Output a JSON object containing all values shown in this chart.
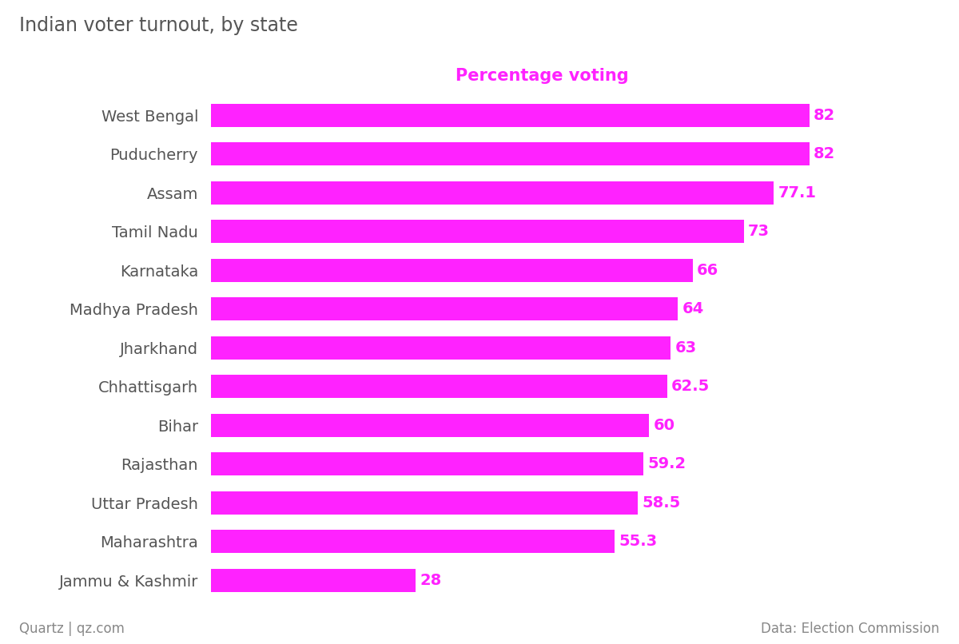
{
  "title": "Indian voter turnout, by state",
  "subtitle": "Percentage voting",
  "subtitle_color": "#ff22ff",
  "title_color": "#555555",
  "bar_color": "#ff22ff",
  "value_color": "#ff22ff",
  "label_color": "#555555",
  "footer_left": "Quartz | qz.com",
  "footer_right": "Data: Election Commission",
  "footer_color": "#888888",
  "background_color": "#ffffff",
  "states": [
    "West Bengal",
    "Puducherry",
    "Assam",
    "Tamil Nadu",
    "Karnataka",
    "Madhya Pradesh",
    "Jharkhand",
    "Chhattisgarh",
    "Bihar",
    "Rajasthan",
    "Uttar Pradesh",
    "Maharashtra",
    "Jammu & Kashmir"
  ],
  "values": [
    82,
    82,
    77.1,
    73,
    66,
    64,
    63,
    62.5,
    60,
    59.2,
    58.5,
    55.3,
    28
  ],
  "value_labels": [
    "82",
    "82",
    "77.1",
    "73",
    "66",
    "64",
    "63",
    "62.5",
    "60",
    "59.2",
    "58.5",
    "55.3",
    "28"
  ],
  "xlim": [
    0,
    92
  ],
  "title_fontsize": 17,
  "subtitle_fontsize": 15,
  "label_fontsize": 14,
  "value_fontsize": 14,
  "footer_fontsize": 12
}
